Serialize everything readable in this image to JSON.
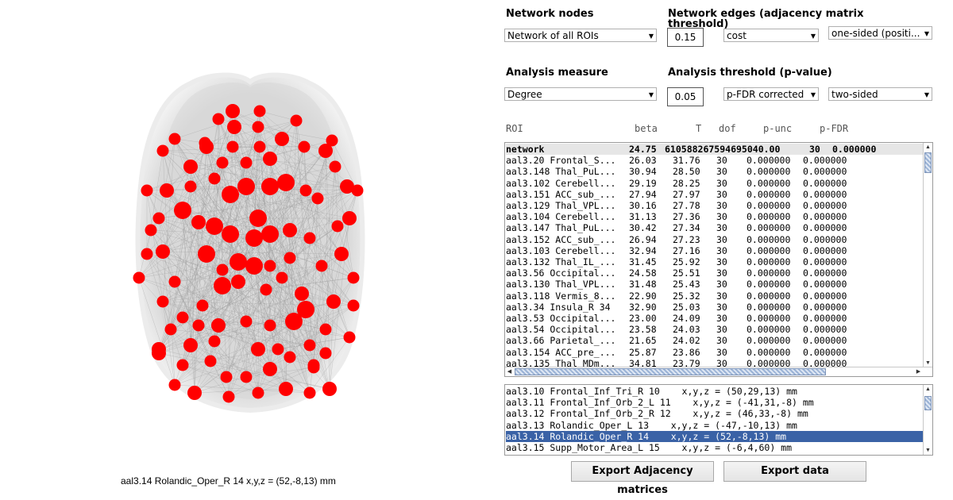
{
  "labels": {
    "network_nodes": "Network nodes",
    "network_edges": "Network edges (adjacency matrix threshold)",
    "analysis_measure": "Analysis measure",
    "analysis_threshold": "Analysis threshold (p-value)"
  },
  "controls": {
    "nodes_select": "Network of all ROIs",
    "edge_threshold": "0.15",
    "edge_type": "cost",
    "edge_sided": "one-sided (positi...",
    "measure": "Degree",
    "p_threshold": "0.05",
    "p_correction": "p-FDR corrected",
    "p_sided": "two-sided"
  },
  "table_header": {
    "roi": "ROI",
    "beta": "beta",
    "t": "T",
    "dof": "dof",
    "punc": "p-unc",
    "pfdr": "p-FDR"
  },
  "results": [
    {
      "roi": "network",
      "beta": "24.75",
      "t": "610588267594695040.00",
      "dof": "30",
      "punc": "0.000000",
      "pfdr": ""
    },
    {
      "roi": "aal3.20 Frontal_S...",
      "beta": "26.03",
      "t": "31.76",
      "dof": "30",
      "punc": "0.000000",
      "pfdr": "0.000000"
    },
    {
      "roi": "aal3.148 Thal_PuL...",
      "beta": "30.94",
      "t": "28.50",
      "dof": "30",
      "punc": "0.000000",
      "pfdr": "0.000000"
    },
    {
      "roi": "aal3.102 Cerebell...",
      "beta": "29.19",
      "t": "28.25",
      "dof": "30",
      "punc": "0.000000",
      "pfdr": "0.000000"
    },
    {
      "roi": "aal3.151 ACC_sub_...",
      "beta": "27.94",
      "t": "27.97",
      "dof": "30",
      "punc": "0.000000",
      "pfdr": "0.000000"
    },
    {
      "roi": "aal3.129 Thal_VPL...",
      "beta": "30.16",
      "t": "27.78",
      "dof": "30",
      "punc": "0.000000",
      "pfdr": "0.000000"
    },
    {
      "roi": "aal3.104 Cerebell...",
      "beta": "31.13",
      "t": "27.36",
      "dof": "30",
      "punc": "0.000000",
      "pfdr": "0.000000"
    },
    {
      "roi": "aal3.147 Thal_PuL...",
      "beta": "30.42",
      "t": "27.34",
      "dof": "30",
      "punc": "0.000000",
      "pfdr": "0.000000"
    },
    {
      "roi": "aal3.152 ACC_sub_...",
      "beta": "26.94",
      "t": "27.23",
      "dof": "30",
      "punc": "0.000000",
      "pfdr": "0.000000"
    },
    {
      "roi": "aal3.103 Cerebell...",
      "beta": "32.94",
      "t": "27.16",
      "dof": "30",
      "punc": "0.000000",
      "pfdr": "0.000000"
    },
    {
      "roi": "aal3.132 Thal_IL_...",
      "beta": "31.45",
      "t": "25.92",
      "dof": "30",
      "punc": "0.000000",
      "pfdr": "0.000000"
    },
    {
      "roi": "aal3.56 Occipital...",
      "beta": "24.58",
      "t": "25.51",
      "dof": "30",
      "punc": "0.000000",
      "pfdr": "0.000000"
    },
    {
      "roi": "aal3.130 Thal_VPL...",
      "beta": "31.48",
      "t": "25.43",
      "dof": "30",
      "punc": "0.000000",
      "pfdr": "0.000000"
    },
    {
      "roi": "aal3.118 Vermis_8...",
      "beta": "22.90",
      "t": "25.32",
      "dof": "30",
      "punc": "0.000000",
      "pfdr": "0.000000"
    },
    {
      "roi": "aal3.34 Insula_R 34",
      "beta": "32.90",
      "t": "25.03",
      "dof": "30",
      "punc": "0.000000",
      "pfdr": "0.000000"
    },
    {
      "roi": "aal3.53 Occipital...",
      "beta": "23.00",
      "t": "24.09",
      "dof": "30",
      "punc": "0.000000",
      "pfdr": "0.000000"
    },
    {
      "roi": "aal3.54 Occipital...",
      "beta": "23.58",
      "t": "24.03",
      "dof": "30",
      "punc": "0.000000",
      "pfdr": "0.000000"
    },
    {
      "roi": "aal3.66 Parietal_...",
      "beta": "21.65",
      "t": "24.02",
      "dof": "30",
      "punc": "0.000000",
      "pfdr": "0.000000"
    },
    {
      "roi": "aal3.154 ACC_pre_...",
      "beta": "25.87",
      "t": "23.86",
      "dof": "30",
      "punc": "0.000000",
      "pfdr": "0.000000"
    },
    {
      "roi": "aal3.135 Thal_MDm...",
      "beta": "34.81",
      "t": "23.79",
      "dof": "30",
      "punc": "0.000000",
      "pfdr": "0.000000"
    }
  ],
  "roi_list": [
    "aal3.10 Frontal_Inf_Tri_R 10    x,y,z = (50,29,13) mm",
    "aal3.11 Frontal_Inf_Orb_2_L 11    x,y,z = (-41,31,-8) mm",
    "aal3.12 Frontal_Inf_Orb_2_R 12    x,y,z = (46,33,-8) mm",
    "aal3.13 Rolandic_Oper_L 13    x,y,z = (-47,-10,13) mm",
    "aal3.14 Rolandic_Oper_R 14    x,y,z = (52,-8,13) mm",
    "aal3.15 Supp_Motor_Area_L 15    x,y,z = (-6,4,60) mm"
  ],
  "roi_list_selected_index": 4,
  "brain_caption": "aal3.14 Rolandic_Oper_R 14    x,y,z = (52,-8,13) mm",
  "buttons": {
    "export_adjacency": "Export Adjacency matrices",
    "export_data": "Export data"
  },
  "colors": {
    "node": "#ff0000",
    "selection": "#3a62a6",
    "edge": "#9a9a9a"
  },
  "icons": {
    "combo_arrow": "chevron-down-icon",
    "scroll_up": "arrow-up-icon",
    "scroll_down": "arrow-down-icon",
    "scroll_left": "arrow-left-icon",
    "scroll_right": "arrow-right-icon"
  }
}
